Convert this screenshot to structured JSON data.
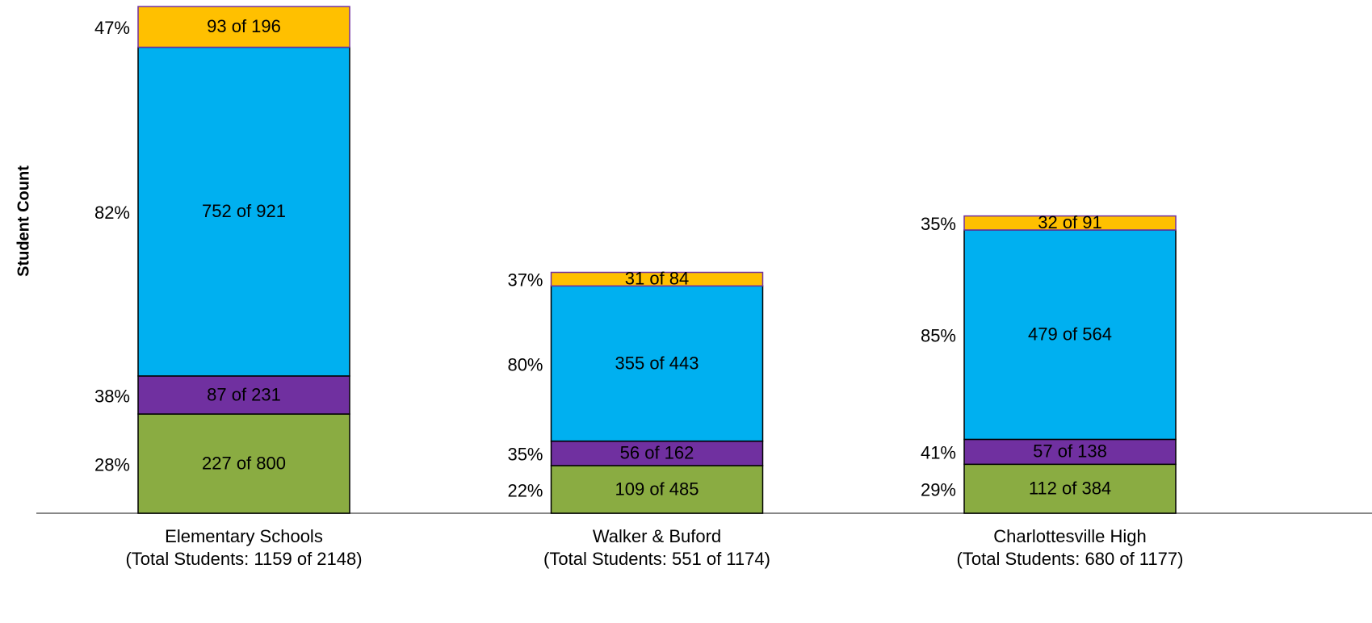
{
  "chart_data": {
    "type": "stacked_bar",
    "y_label": "Student Count",
    "categories": [
      [
        "Elementary Schools",
        "(Total Students: 1159 of 2148)"
      ],
      [
        "Walker & Buford",
        "(Total Students: 551 of 1174)"
      ],
      [
        "Charlottesville High",
        "(Total Students: 680 of 1177)"
      ]
    ],
    "series": [
      {
        "color": "#8aac42",
        "values": [
          227,
          109,
          112
        ],
        "value_labels": [
          "227 of 800",
          "109 of 485",
          "112 of 384"
        ],
        "percent_labels": [
          "28%",
          "22%",
          "29%"
        ]
      },
      {
        "color": "#7030a0",
        "values": [
          87,
          56,
          57
        ],
        "value_labels": [
          "87 of 231",
          "56 of 162",
          "57 of 138"
        ],
        "percent_labels": [
          "38%",
          "35%",
          "41%"
        ]
      },
      {
        "color": "#00b0f0",
        "values": [
          752,
          355,
          479
        ],
        "value_labels": [
          "752 of 921",
          "355 of 443",
          "479 of 564"
        ],
        "percent_labels": [
          "82%",
          "80%",
          "85%"
        ]
      },
      {
        "color": "#ffc000",
        "values": [
          93,
          31,
          32
        ],
        "value_labels": [
          "93 of 196",
          "31 of 84",
          "32 of 91"
        ],
        "percent_labels": [
          "47%",
          "37%",
          "35%"
        ]
      }
    ],
    "ylim": [
      0,
      1174
    ]
  }
}
